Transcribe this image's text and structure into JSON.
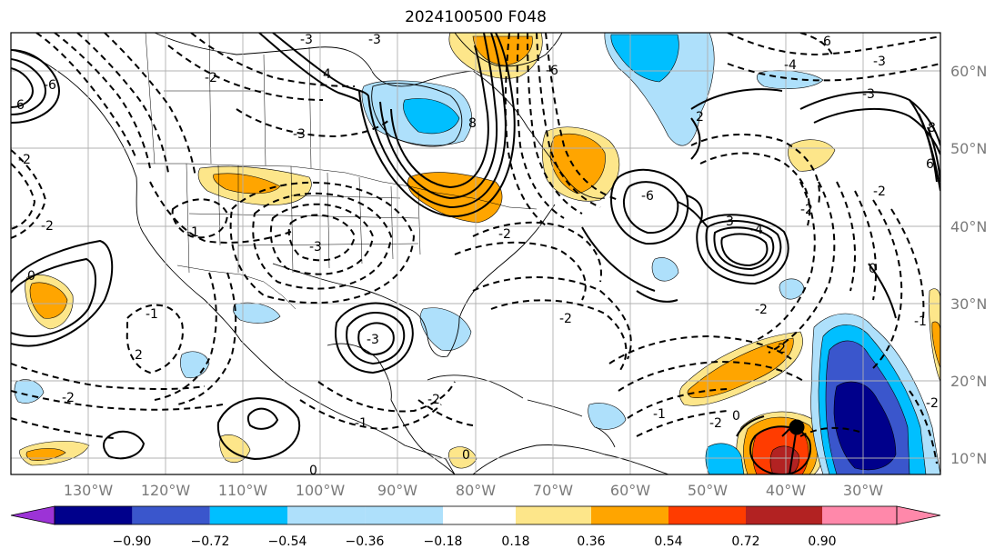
{
  "title": "2024100500 F048",
  "map": {
    "lon_labels": [
      "130°W",
      "120°W",
      "110°W",
      "100°W",
      "90°W",
      "80°W",
      "70°W",
      "60°W",
      "50°W",
      "40°W",
      "30°W"
    ],
    "lat_labels": [
      "60°N",
      "50°N",
      "40°N",
      "30°N",
      "20°N",
      "10°N"
    ],
    "contour_labels": [
      "-3",
      "4",
      "-6",
      "-3",
      "8",
      "-4",
      "-3",
      "-6",
      "-4",
      "-3",
      "-2",
      "-2",
      "0",
      "-1",
      "2",
      "-2",
      "-1",
      "-2",
      "0",
      "-3",
      "-2",
      "0",
      "-6",
      "3",
      "-2",
      "-2",
      "-3",
      "-1",
      "-2",
      "-2",
      "-1",
      "-2",
      "0",
      "-1",
      "0",
      "-2",
      "6",
      "8",
      "6",
      "-2",
      "-3",
      "-2",
      "-6",
      "2"
    ]
  },
  "colors": {
    "fill_levels": [
      "#9c33d6",
      "#00008b",
      "#3a56cc",
      "#00bfff",
      "#aee0fb",
      "#ffffff",
      "#fde68a",
      "#ffa500",
      "#ff3c00",
      "#b22222",
      "#ff88aa"
    ],
    "contour_line": "#000000",
    "grid": "#b0b0b0",
    "coast": "#000000",
    "marker": "#000000"
  },
  "colorbar": {
    "labels": [
      "−0.90",
      "−0.72",
      "−0.54",
      "−0.36",
      "−0.18",
      "0.18",
      "0.36",
      "0.54",
      "0.72",
      "0.90"
    ],
    "colors": [
      "#9c33d6",
      "#00008b",
      "#3a56cc",
      "#00bfff",
      "#aee0fb",
      "#ffffff",
      "#fde68a",
      "#ffa500",
      "#ff3c00",
      "#b22222",
      "#ff88aa"
    ],
    "extend": "both"
  }
}
